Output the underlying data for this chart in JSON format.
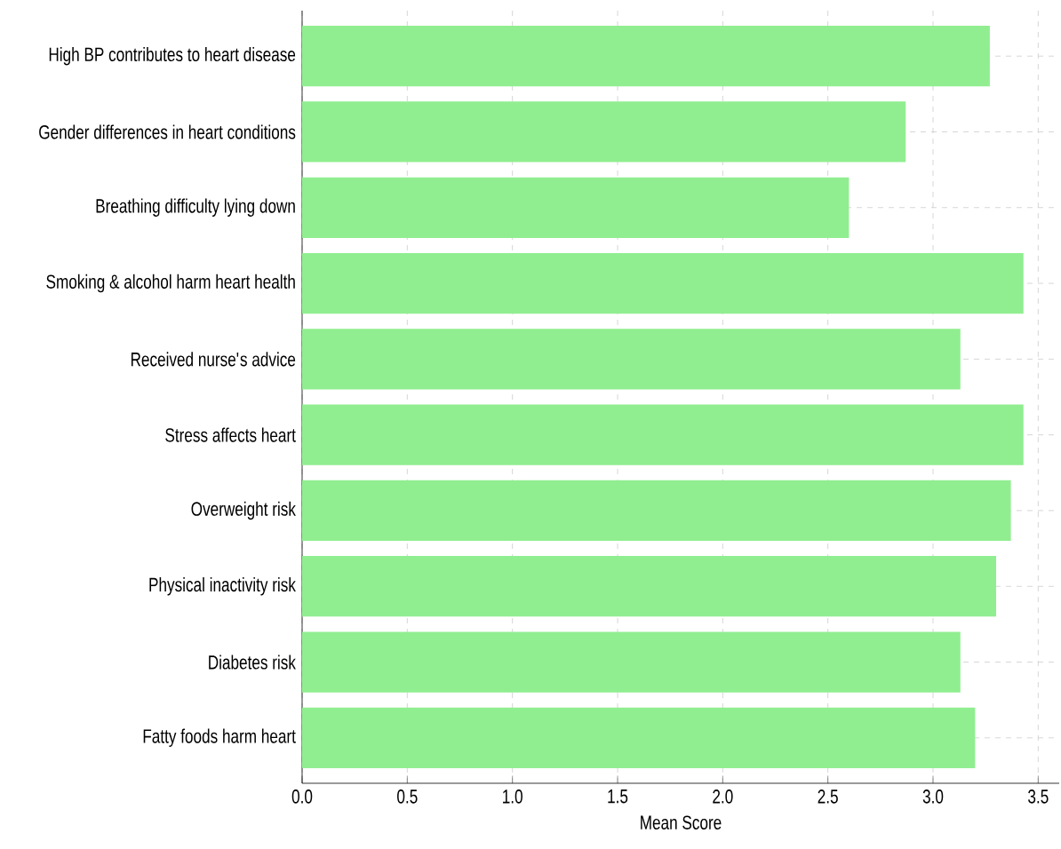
{
  "chart_data": {
    "type": "bar",
    "orientation": "horizontal",
    "xlabel": "Mean Score",
    "categories": [
      "High BP contributes to heart disease",
      "Gender differences in heart conditions",
      "Breathing difficulty lying down",
      "Smoking & alcohol harm heart health",
      "Received nurse's advice",
      "Stress affects heart",
      "Overweight risk",
      "Physical inactivity risk",
      "Diabetes risk",
      "Fatty foods harm heart"
    ],
    "values": [
      3.27,
      2.87,
      2.6,
      3.43,
      3.13,
      3.43,
      3.37,
      3.3,
      3.13,
      3.2
    ],
    "color": "#90ee90",
    "xlim": [
      0,
      3.6
    ],
    "xticks": [
      {
        "value": 0,
        "label": "0.0"
      },
      {
        "value": 0.5,
        "label": "0.5"
      },
      {
        "value": 1,
        "label": "1.0"
      },
      {
        "value": 1.5,
        "label": "1.5"
      },
      {
        "value": 2,
        "label": "2.0"
      },
      {
        "value": 2.5,
        "label": "2.5"
      },
      {
        "value": 3,
        "label": "3.0"
      },
      {
        "value": 3.5,
        "label": "3.5"
      }
    ],
    "grid": true
  }
}
